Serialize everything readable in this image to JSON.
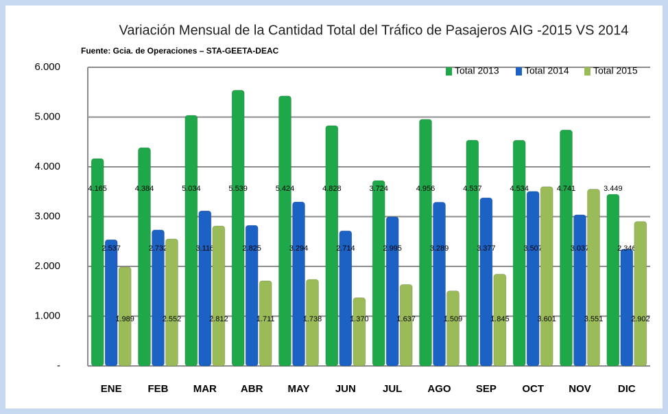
{
  "chart_data": {
    "type": "bar",
    "title": "Variación Mensual de la Cantidad Total del Tráfico de Pasajeros AIG -2015 VS 2014",
    "subtitle": "Fuente: Gcia. de Operaciones – STA-GEETA-DEAC",
    "categories": [
      "ENE",
      "FEB",
      "MAR",
      "ABR",
      "MAY",
      "JUN",
      "JUL",
      "AGO",
      "SEP",
      "OCT",
      "NOV",
      "DIC"
    ],
    "series": [
      {
        "name": "Total 2013",
        "color": "#1fa84a",
        "values": [
          4165,
          4384,
          5034,
          5539,
          5424,
          4828,
          3724,
          4956,
          4537,
          4534,
          4741,
          3449
        ],
        "value_labels": [
          "4.165",
          "4.384",
          "5.034",
          "5.539",
          "5.424",
          "4.828",
          "3.724",
          "4.956",
          "4.537",
          "4.534",
          "4.741",
          "3.449"
        ]
      },
      {
        "name": "Total 2014",
        "color": "#1c62c4",
        "values": [
          2537,
          2732,
          3116,
          2825,
          3294,
          2714,
          2995,
          3289,
          3377,
          3507,
          3037,
          2346
        ],
        "value_labels": [
          "2.537",
          "2.732",
          "3.116",
          "2.825",
          "3.294",
          "2.714",
          "2.995",
          "3.289",
          "3.377",
          "3.507",
          "3.037",
          "2.346"
        ]
      },
      {
        "name": "Total 2015",
        "color": "#9bbb59",
        "values": [
          1989,
          2552,
          2812,
          1711,
          1738,
          1370,
          1637,
          1509,
          1845,
          3601,
          3551,
          2902
        ],
        "value_labels": [
          "1.989",
          "2.552",
          "2.812",
          "1.711",
          "1.738",
          "1.370",
          "1.637",
          "1.509",
          "1.845",
          "3.601",
          "3.551",
          "2.902"
        ]
      }
    ],
    "ylim": [
      0,
      6000
    ],
    "yticks": [
      {
        "value": 0,
        "label": "-"
      },
      {
        "value": 1000,
        "label": "1.000"
      },
      {
        "value": 2000,
        "label": "2.000"
      },
      {
        "value": 3000,
        "label": "3.000"
      },
      {
        "value": 4000,
        "label": "4.000"
      },
      {
        "value": 5000,
        "label": "5.000"
      },
      {
        "value": 6000,
        "label": "6.000"
      }
    ],
    "grid": true,
    "legend": "top-right"
  }
}
